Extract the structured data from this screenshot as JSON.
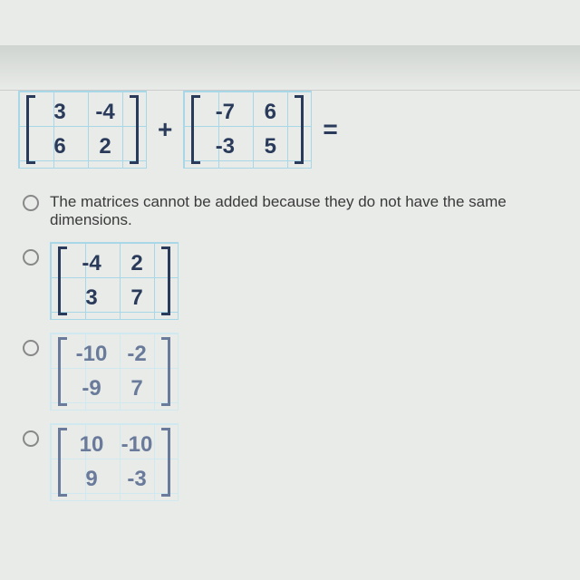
{
  "question": {
    "matrix_a": [
      [
        "3",
        "-4"
      ],
      [
        "6",
        "2"
      ]
    ],
    "matrix_b": [
      [
        "-7",
        "6"
      ],
      [
        "-3",
        "5"
      ]
    ],
    "plus": "+",
    "equals": "="
  },
  "options": {
    "opt1_text": "The matrices cannot be added because they do not have the same dimensions.",
    "opt2_matrix": [
      [
        "-4",
        "2"
      ],
      [
        "3",
        "7"
      ]
    ],
    "opt3_matrix": [
      [
        "-10",
        "-2"
      ],
      [
        "-9",
        "7"
      ]
    ],
    "opt4_matrix": [
      [
        "10",
        "-10"
      ],
      [
        "9",
        "-3"
      ]
    ]
  },
  "colors": {
    "grid_line": "#a8d8e8",
    "bracket": "#2a3a5a",
    "text": "#2a3a5a",
    "background": "#e8ebe8"
  }
}
